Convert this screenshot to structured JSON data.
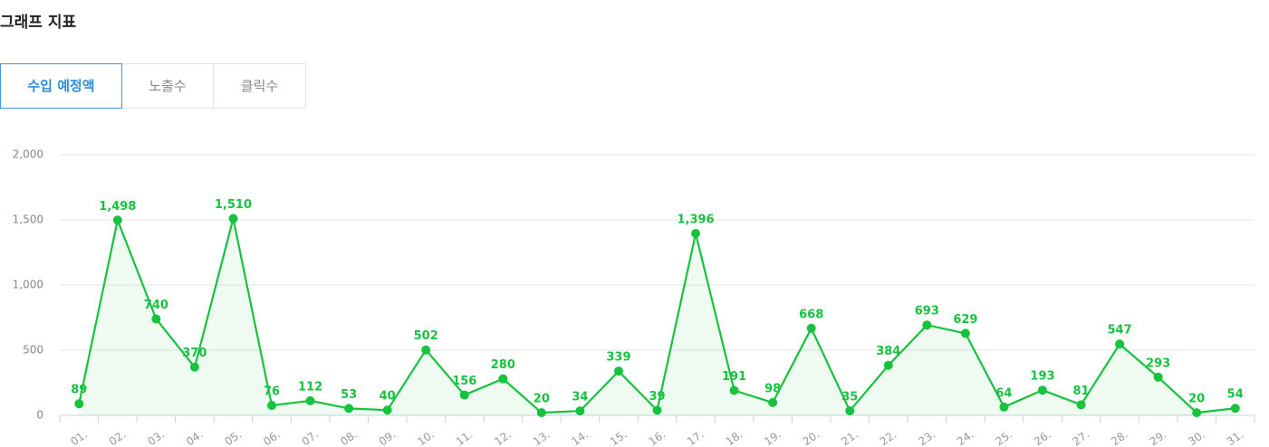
{
  "header": {
    "title": "그래프 지표"
  },
  "tabs": [
    "수입 예정액",
    "노출수",
    "클릭수"
  ],
  "chart_data": {
    "type": "line",
    "categories": [
      "01.",
      "02.",
      "03.",
      "04.",
      "05.",
      "06.",
      "07.",
      "08.",
      "09.",
      "10.",
      "11.",
      "12.",
      "13.",
      "14.",
      "15.",
      "16.",
      "17.",
      "18.",
      "19.",
      "20.",
      "21.",
      "22.",
      "23.",
      "24.",
      "25.",
      "26.",
      "27.",
      "28.",
      "29.",
      "30.",
      "31."
    ],
    "values": [
      89,
      1498,
      740,
      370,
      1510,
      76,
      112,
      53,
      40,
      502,
      156,
      280,
      20,
      34,
      339,
      39,
      1396,
      191,
      98,
      668,
      35,
      384,
      693,
      629,
      64,
      193,
      81,
      547,
      293,
      20,
      54
    ],
    "value_labels": [
      "89",
      "1,498",
      "740",
      "370",
      "1,510",
      "76",
      "112",
      "53",
      "40",
      "502",
      "156",
      "280",
      "20",
      "34",
      "339",
      "39",
      "1,396",
      "191",
      "98",
      "668",
      "35",
      "384",
      "693",
      "629",
      "64",
      "193",
      "81",
      "547",
      "293",
      "20",
      "54"
    ],
    "color": "#17c23f",
    "ylim": [
      0,
      2000
    ],
    "yticks": [
      0,
      500,
      {
        "value": 1000,
        "label": "1,000"
      },
      {
        "value": 1500,
        "label": "1,500"
      },
      {
        "value": 2000,
        "label": "2,000"
      }
    ],
    "grid": true
  }
}
